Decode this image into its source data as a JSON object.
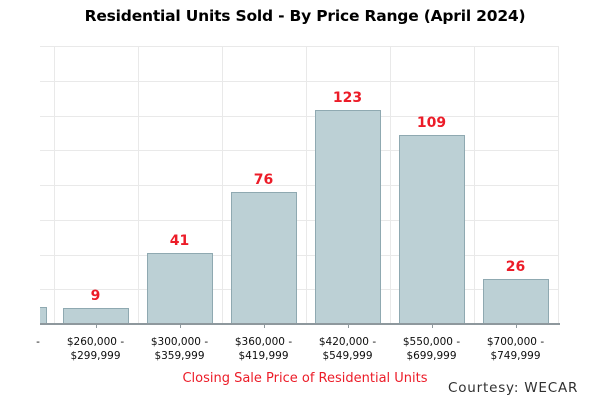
{
  "chart_data": {
    "type": "bar",
    "title": "Residential Units Sold - By Price Range (April 2024)",
    "xlabel": "Closing Sale Price of Residential Units",
    "ylabel": "",
    "categories": [
      "$260,000 - $299,999",
      "$300,000 - $359,999",
      "$360,000 - $419,999",
      "$420,000 - $549,999",
      "$550,000 - $699,999",
      "$700,000 - $749,999"
    ],
    "category_label_lines": [
      [
        "$260,000 -",
        "$299,999"
      ],
      [
        "$300,000 -",
        "$359,999"
      ],
      [
        "$360,000 -",
        "$419,999"
      ],
      [
        "$420,000 -",
        "$549,999"
      ],
      [
        "$550,000 -",
        "$699,999"
      ],
      [
        "$700,000 -",
        "$749,999"
      ]
    ],
    "values": [
      9,
      41,
      76,
      123,
      109,
      26
    ],
    "value_labels": [
      "9",
      "41",
      "76",
      "123",
      "109",
      "26"
    ],
    "ylim": [
      0,
      160
    ],
    "grid_step": 20,
    "grid": true,
    "legend": false,
    "bar_color": "#bcd0d5",
    "bar_border_color": "#8fa9b1",
    "value_label_color": "#ec1c28",
    "clipped_first_category": {
      "label_fragment": "-",
      "approx_value": 10
    }
  },
  "annotations": {
    "courtesy": "Courtesy: WECAR"
  },
  "colors": {
    "title": "#000000",
    "axis_title": "#ec1c28",
    "tick_label": "#0d0d0d",
    "gridline": "#e9e9e9",
    "axis_line": "#8e989d",
    "courtesy": "#303030",
    "background": "#ffffff"
  }
}
